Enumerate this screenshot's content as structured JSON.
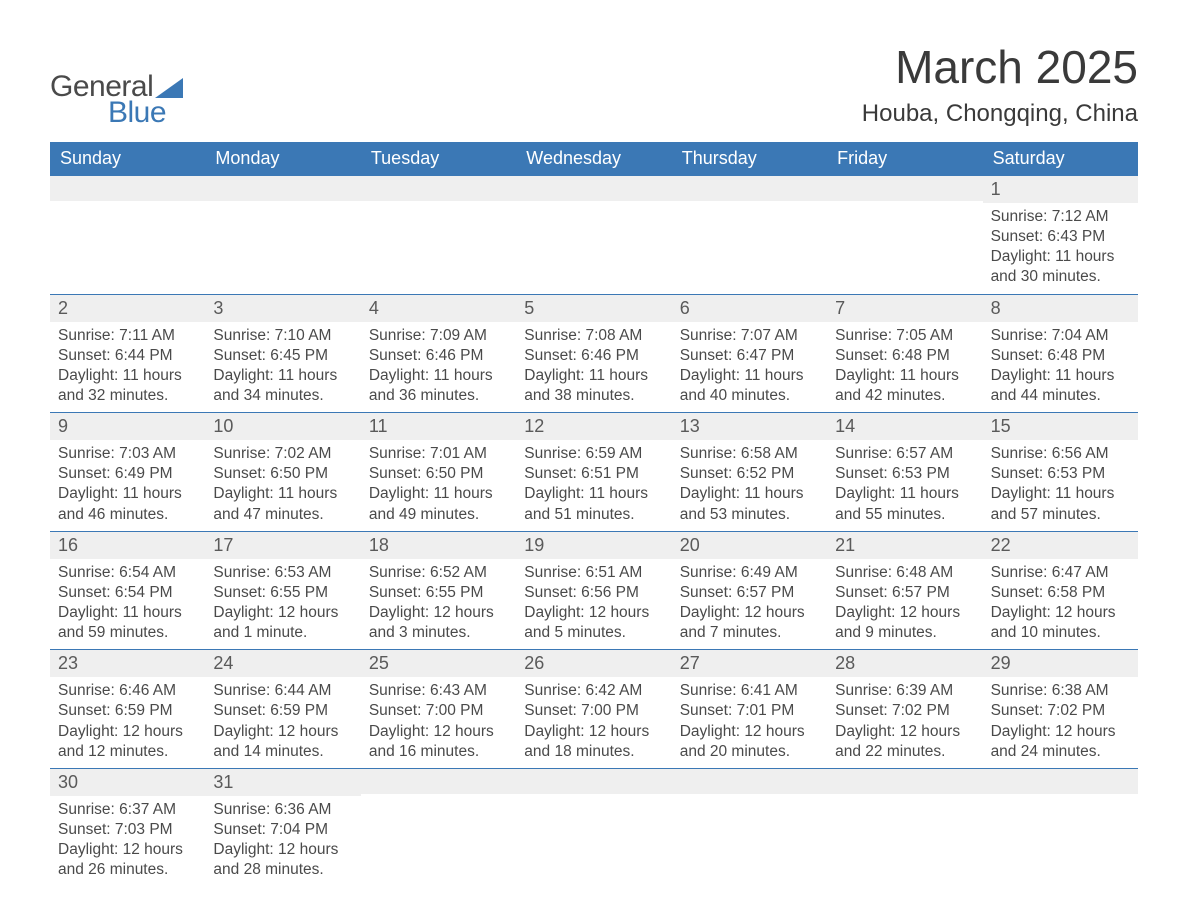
{
  "logo": {
    "word1": "General",
    "word2": "Blue"
  },
  "title": "March 2025",
  "location": "Houba, Chongqing, China",
  "colors": {
    "header_bg": "#3b78b5",
    "header_text": "#ffffff",
    "daybar_bg": "#efefef",
    "body_text": "#4a4a4a",
    "border": "#3b78b5"
  },
  "daysOfWeek": [
    "Sunday",
    "Monday",
    "Tuesday",
    "Wednesday",
    "Thursday",
    "Friday",
    "Saturday"
  ],
  "weeks": [
    [
      null,
      null,
      null,
      null,
      null,
      null,
      {
        "n": "1",
        "sr": "7:12 AM",
        "ss": "6:43 PM",
        "dl": "11 hours and 30 minutes."
      }
    ],
    [
      {
        "n": "2",
        "sr": "7:11 AM",
        "ss": "6:44 PM",
        "dl": "11 hours and 32 minutes."
      },
      {
        "n": "3",
        "sr": "7:10 AM",
        "ss": "6:45 PM",
        "dl": "11 hours and 34 minutes."
      },
      {
        "n": "4",
        "sr": "7:09 AM",
        "ss": "6:46 PM",
        "dl": "11 hours and 36 minutes."
      },
      {
        "n": "5",
        "sr": "7:08 AM",
        "ss": "6:46 PM",
        "dl": "11 hours and 38 minutes."
      },
      {
        "n": "6",
        "sr": "7:07 AM",
        "ss": "6:47 PM",
        "dl": "11 hours and 40 minutes."
      },
      {
        "n": "7",
        "sr": "7:05 AM",
        "ss": "6:48 PM",
        "dl": "11 hours and 42 minutes."
      },
      {
        "n": "8",
        "sr": "7:04 AM",
        "ss": "6:48 PM",
        "dl": "11 hours and 44 minutes."
      }
    ],
    [
      {
        "n": "9",
        "sr": "7:03 AM",
        "ss": "6:49 PM",
        "dl": "11 hours and 46 minutes."
      },
      {
        "n": "10",
        "sr": "7:02 AM",
        "ss": "6:50 PM",
        "dl": "11 hours and 47 minutes."
      },
      {
        "n": "11",
        "sr": "7:01 AM",
        "ss": "6:50 PM",
        "dl": "11 hours and 49 minutes."
      },
      {
        "n": "12",
        "sr": "6:59 AM",
        "ss": "6:51 PM",
        "dl": "11 hours and 51 minutes."
      },
      {
        "n": "13",
        "sr": "6:58 AM",
        "ss": "6:52 PM",
        "dl": "11 hours and 53 minutes."
      },
      {
        "n": "14",
        "sr": "6:57 AM",
        "ss": "6:53 PM",
        "dl": "11 hours and 55 minutes."
      },
      {
        "n": "15",
        "sr": "6:56 AM",
        "ss": "6:53 PM",
        "dl": "11 hours and 57 minutes."
      }
    ],
    [
      {
        "n": "16",
        "sr": "6:54 AM",
        "ss": "6:54 PM",
        "dl": "11 hours and 59 minutes."
      },
      {
        "n": "17",
        "sr": "6:53 AM",
        "ss": "6:55 PM",
        "dl": "12 hours and 1 minute."
      },
      {
        "n": "18",
        "sr": "6:52 AM",
        "ss": "6:55 PM",
        "dl": "12 hours and 3 minutes."
      },
      {
        "n": "19",
        "sr": "6:51 AM",
        "ss": "6:56 PM",
        "dl": "12 hours and 5 minutes."
      },
      {
        "n": "20",
        "sr": "6:49 AM",
        "ss": "6:57 PM",
        "dl": "12 hours and 7 minutes."
      },
      {
        "n": "21",
        "sr": "6:48 AM",
        "ss": "6:57 PM",
        "dl": "12 hours and 9 minutes."
      },
      {
        "n": "22",
        "sr": "6:47 AM",
        "ss": "6:58 PM",
        "dl": "12 hours and 10 minutes."
      }
    ],
    [
      {
        "n": "23",
        "sr": "6:46 AM",
        "ss": "6:59 PM",
        "dl": "12 hours and 12 minutes."
      },
      {
        "n": "24",
        "sr": "6:44 AM",
        "ss": "6:59 PM",
        "dl": "12 hours and 14 minutes."
      },
      {
        "n": "25",
        "sr": "6:43 AM",
        "ss": "7:00 PM",
        "dl": "12 hours and 16 minutes."
      },
      {
        "n": "26",
        "sr": "6:42 AM",
        "ss": "7:00 PM",
        "dl": "12 hours and 18 minutes."
      },
      {
        "n": "27",
        "sr": "6:41 AM",
        "ss": "7:01 PM",
        "dl": "12 hours and 20 minutes."
      },
      {
        "n": "28",
        "sr": "6:39 AM",
        "ss": "7:02 PM",
        "dl": "12 hours and 22 minutes."
      },
      {
        "n": "29",
        "sr": "6:38 AM",
        "ss": "7:02 PM",
        "dl": "12 hours and 24 minutes."
      }
    ],
    [
      {
        "n": "30",
        "sr": "6:37 AM",
        "ss": "7:03 PM",
        "dl": "12 hours and 26 minutes."
      },
      {
        "n": "31",
        "sr": "6:36 AM",
        "ss": "7:04 PM",
        "dl": "12 hours and 28 minutes."
      },
      null,
      null,
      null,
      null,
      null
    ]
  ],
  "labels": {
    "sunrise": "Sunrise: ",
    "sunset": "Sunset: ",
    "daylight": "Daylight: "
  }
}
